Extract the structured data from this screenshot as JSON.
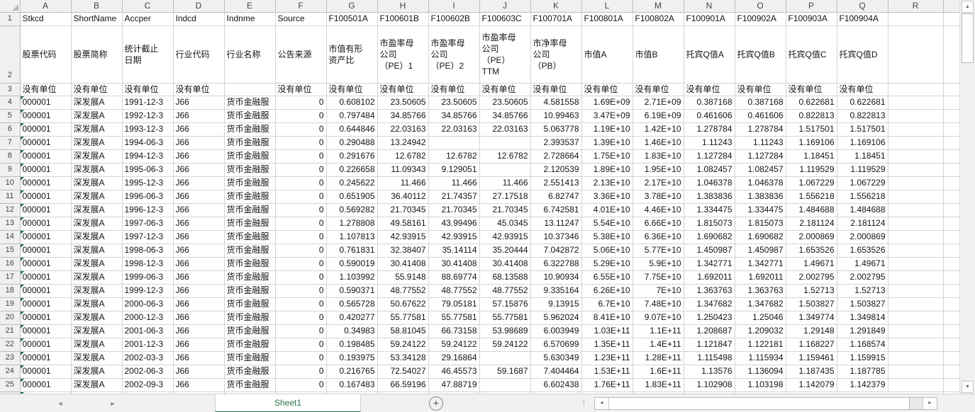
{
  "sheet": {
    "name": "Sheet1",
    "columns": [
      {
        "letter": "A",
        "code": "Stkcd",
        "label": "股票代码",
        "unit": "没有单位"
      },
      {
        "letter": "B",
        "code": "ShortName",
        "label": "股票简称",
        "unit": "没有单位"
      },
      {
        "letter": "C",
        "code": "Accper",
        "label": "统计截止\n日期",
        "unit": "没有单位"
      },
      {
        "letter": "D",
        "code": "Indcd",
        "label": "行业代码",
        "unit": "没有单位"
      },
      {
        "letter": "E",
        "code": "Indnme",
        "label": "行业名称",
        "unit": ""
      },
      {
        "letter": "F",
        "code": "Source",
        "label": "公告来源",
        "unit": "没有单位"
      },
      {
        "letter": "G",
        "code": "F100501A",
        "label": "市值有形\n资产比",
        "unit": "没有单位"
      },
      {
        "letter": "H",
        "code": "F100601B",
        "label": "市盈率母\n公司\n（PE）1",
        "unit": "没有单位"
      },
      {
        "letter": "I",
        "code": "F100602B",
        "label": "市盈率母\n公司\n（PE）2",
        "unit": "没有单位"
      },
      {
        "letter": "J",
        "code": "F100603C",
        "label": "市盈率母\n公司\n（PE）\nTTM",
        "unit": "没有单位"
      },
      {
        "letter": "K",
        "code": "F100701A",
        "label": "市净率母\n公司\n（PB）",
        "unit": "没有单位"
      },
      {
        "letter": "L",
        "code": "F100801A",
        "label": "市值A",
        "unit": "没有单位"
      },
      {
        "letter": "M",
        "code": "F100802A",
        "label": "市值B",
        "unit": "没有单位"
      },
      {
        "letter": "N",
        "code": "F100901A",
        "label": "托宾Q值A",
        "unit": "没有单位"
      },
      {
        "letter": "O",
        "code": "F100902A",
        "label": "托宾Q值B",
        "unit": "没有单位"
      },
      {
        "letter": "P",
        "code": "F100903A",
        "label": "托宾Q值C",
        "unit": "没有单位"
      },
      {
        "letter": "Q",
        "code": "F100904A",
        "label": "托宾Q值D",
        "unit": "没有单位"
      },
      {
        "letter": "R",
        "code": "",
        "label": "",
        "unit": ""
      }
    ],
    "rows": [
      {
        "n": 4,
        "c": [
          "000001",
          "深发展A",
          "1991-12-3",
          "J66",
          "货币金融服",
          "0",
          "0.608102",
          "23.50605",
          "23.50605",
          "23.50605",
          "4.581558",
          "1.69E+09",
          "2.71E+09",
          "0.387168",
          "0.387168",
          "0.622681",
          "0.622681"
        ]
      },
      {
        "n": 5,
        "c": [
          "000001",
          "深发展A",
          "1992-12-3",
          "J66",
          "货币金融服",
          "0",
          "0.797484",
          "34.85766",
          "34.85766",
          "34.85766",
          "10.99463",
          "3.47E+09",
          "6.19E+09",
          "0.461606",
          "0.461606",
          "0.822813",
          "0.822813"
        ]
      },
      {
        "n": 6,
        "c": [
          "000001",
          "深发展A",
          "1993-12-3",
          "J66",
          "货币金融服",
          "0",
          "0.644846",
          "22.03163",
          "22.03163",
          "22.03163",
          "5.063778",
          "1.19E+10",
          "1.42E+10",
          "1.278784",
          "1.278784",
          "1.517501",
          "1.517501"
        ]
      },
      {
        "n": 7,
        "c": [
          "000001",
          "深发展A",
          "1994-06-3",
          "J66",
          "货币金融服",
          "0",
          "0.290488",
          "13.24942",
          "",
          "",
          "2.393537",
          "1.39E+10",
          "1.46E+10",
          "1.11243",
          "1.11243",
          "1.169106",
          "1.169106"
        ]
      },
      {
        "n": 8,
        "c": [
          "000001",
          "深发展A",
          "1994-12-3",
          "J66",
          "货币金融服",
          "0",
          "0.291676",
          "12.6782",
          "12.6782",
          "12.6782",
          "2.728664",
          "1.75E+10",
          "1.83E+10",
          "1.127284",
          "1.127284",
          "1.18451",
          "1.18451"
        ]
      },
      {
        "n": 9,
        "c": [
          "000001",
          "深发展A",
          "1995-06-3",
          "J66",
          "货币金融服",
          "0",
          "0.226658",
          "11.09343",
          "9.129051",
          "",
          "2.120539",
          "1.89E+10",
          "1.95E+10",
          "1.082457",
          "1.082457",
          "1.119529",
          "1.119529"
        ]
      },
      {
        "n": 10,
        "c": [
          "000001",
          "深发展A",
          "1995-12-3",
          "J66",
          "货币金融服",
          "0",
          "0.245622",
          "11.466",
          "11.466",
          "11.466",
          "2.551413",
          "2.13E+10",
          "2.17E+10",
          "1.046378",
          "1.046378",
          "1.067229",
          "1.067229"
        ]
      },
      {
        "n": 11,
        "c": [
          "000001",
          "深发展A",
          "1996-06-3",
          "J66",
          "货币金融服",
          "0",
          "0.651905",
          "36.40112",
          "21.74357",
          "27.17518",
          "6.82747",
          "3.36E+10",
          "3.78E+10",
          "1.383836",
          "1.383836",
          "1.556218",
          "1.556218"
        ]
      },
      {
        "n": 12,
        "c": [
          "000001",
          "深发展A",
          "1996-12-3",
          "J66",
          "货币金融服",
          "0",
          "0.569282",
          "21.70345",
          "21.70345",
          "21.70345",
          "6.742581",
          "4.01E+10",
          "4.46E+10",
          "1.334475",
          "1.334475",
          "1.484688",
          "1.484688"
        ]
      },
      {
        "n": 13,
        "c": [
          "000001",
          "深发展A",
          "1997-06-3",
          "J66",
          "货币金融服",
          "0",
          "1.278808",
          "49.58161",
          "43.99496",
          "45.0345",
          "13.11247",
          "5.54E+10",
          "6.66E+10",
          "1.815073",
          "1.815073",
          "2.181124",
          "2.181124"
        ]
      },
      {
        "n": 14,
        "c": [
          "000001",
          "深发展A",
          "1997-12-3",
          "J66",
          "货币金融服",
          "0",
          "1.107813",
          "42.93915",
          "42.93915",
          "42.93915",
          "10.37346",
          "5.38E+10",
          "6.36E+10",
          "1.690682",
          "1.690682",
          "2.000869",
          "2.000869"
        ]
      },
      {
        "n": 15,
        "c": [
          "000001",
          "深发展A",
          "1998-06-3",
          "J66",
          "货币金融服",
          "0",
          "0.761831",
          "32.38407",
          "35.14114",
          "35.20444",
          "7.042872",
          "5.06E+10",
          "5.77E+10",
          "1.450987",
          "1.450987",
          "1.653526",
          "1.653526"
        ]
      },
      {
        "n": 16,
        "c": [
          "000001",
          "深发展A",
          "1998-12-3",
          "J66",
          "货币金融服",
          "0",
          "0.590019",
          "30.41408",
          "30.41408",
          "30.41408",
          "6.322788",
          "5.29E+10",
          "5.9E+10",
          "1.342771",
          "1.342771",
          "1.49671",
          "1.49671"
        ]
      },
      {
        "n": 17,
        "c": [
          "000001",
          "深发展A",
          "1999-06-3",
          "J66",
          "货币金融服",
          "0",
          "1.103992",
          "55.9148",
          "88.69774",
          "68.13588",
          "10.90934",
          "6.55E+10",
          "7.75E+10",
          "1.692011",
          "1.692011",
          "2.002795",
          "2.002795"
        ]
      },
      {
        "n": 18,
        "c": [
          "000001",
          "深发展A",
          "1999-12-3",
          "J66",
          "货币金融服",
          "0",
          "0.590371",
          "48.77552",
          "48.77552",
          "48.77552",
          "9.335164",
          "6.26E+10",
          "7E+10",
          "1.363763",
          "1.363763",
          "1.52713",
          "1.52713"
        ]
      },
      {
        "n": 19,
        "c": [
          "000001",
          "深发展A",
          "2000-06-3",
          "J66",
          "货币金融服",
          "0",
          "0.565728",
          "50.67622",
          "79.05181",
          "57.15876",
          "9.13915",
          "6.7E+10",
          "7.48E+10",
          "1.347682",
          "1.347682",
          "1.503827",
          "1.503827"
        ]
      },
      {
        "n": 20,
        "c": [
          "000001",
          "深发展A",
          "2000-12-3",
          "J66",
          "货币金融服",
          "0",
          "0.420277",
          "55.77581",
          "55.77581",
          "55.77581",
          "5.962024",
          "8.41E+10",
          "9.07E+10",
          "1.250423",
          "1.25046",
          "1.349774",
          "1.349814"
        ]
      },
      {
        "n": 21,
        "c": [
          "000001",
          "深发展A",
          "2001-06-3",
          "J66",
          "货币金融服",
          "0",
          "0.34983",
          "58.81045",
          "66.73158",
          "53.98689",
          "6.003949",
          "1.03E+11",
          "1.1E+11",
          "1.208687",
          "1.209032",
          "1.29148",
          "1.291849"
        ]
      },
      {
        "n": 22,
        "c": [
          "000001",
          "深发展A",
          "2001-12-3",
          "J66",
          "货币金融服",
          "0",
          "0.198485",
          "59.24122",
          "59.24122",
          "59.24122",
          "6.570699",
          "1.35E+11",
          "1.4E+11",
          "1.121847",
          "1.122181",
          "1.168227",
          "1.168574"
        ]
      },
      {
        "n": 23,
        "c": [
          "000001",
          "深发展A",
          "2002-03-3",
          "J66",
          "货币金融服",
          "0",
          "0.193975",
          "53.34128",
          "29.16864",
          "",
          "5.630349",
          "1.23E+11",
          "1.28E+11",
          "1.115498",
          "1.115934",
          "1.159461",
          "1.159915"
        ]
      },
      {
        "n": 24,
        "c": [
          "000001",
          "深发展A",
          "2002-06-3",
          "J66",
          "货币金融服",
          "0",
          "0.216765",
          "72.54027",
          "46.45573",
          "59.1687",
          "7.404464",
          "1.53E+11",
          "1.6E+11",
          "1.13576",
          "1.136094",
          "1.187435",
          "1.187785"
        ]
      },
      {
        "n": 25,
        "c": [
          "000001",
          "深发展A",
          "2002-09-3",
          "J66",
          "货币金融服",
          "0",
          "0.167483",
          "66.59196",
          "47.88719",
          "",
          "6.602438",
          "1.76E+11",
          "1.83E+11",
          "1.102908",
          "1.103198",
          "1.142079",
          "1.142379"
        ]
      }
    ]
  },
  "icons": {
    "nav_left": "◄",
    "nav_right": "►",
    "add_sheet": "+",
    "splitter": "⁞",
    "scroll_up": "▲",
    "scroll_down": "▼",
    "scroll_left": "◄",
    "scroll_right": "►"
  },
  "colors": {
    "accent_green": "#217346",
    "error_triangle_green": "#1e7145",
    "header_bg": "#f0f0f0",
    "gridline": "#d4d4d4",
    "bar_bg": "#f1f1f1"
  }
}
